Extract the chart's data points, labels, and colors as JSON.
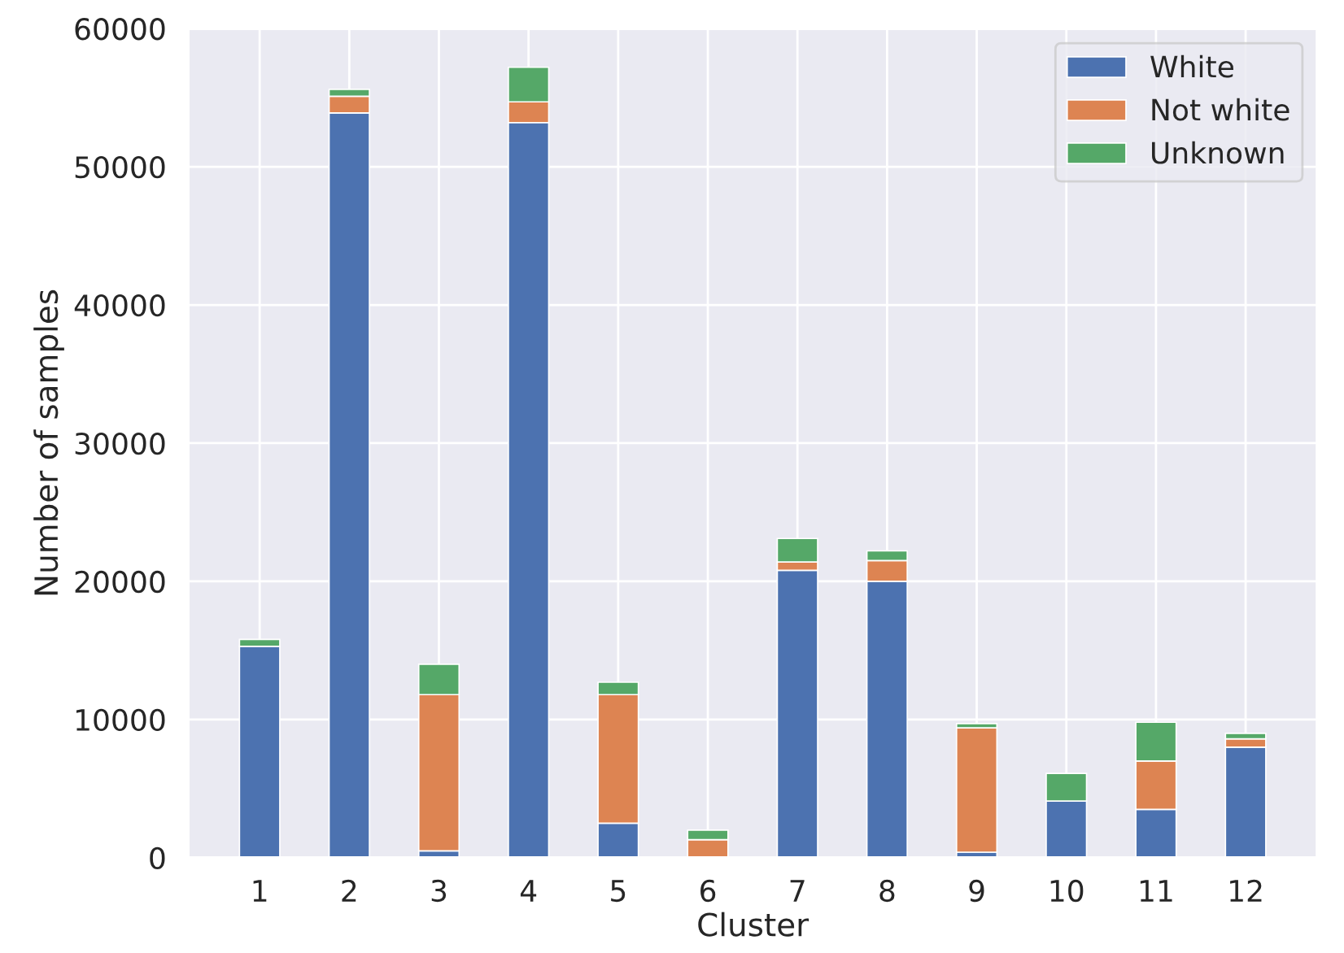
{
  "chart_data": {
    "type": "bar",
    "stacked": true,
    "xlabel": "Cluster",
    "ylabel": "Number of samples",
    "categories": [
      "1",
      "2",
      "3",
      "4",
      "5",
      "6",
      "7",
      "8",
      "9",
      "10",
      "11",
      "12"
    ],
    "series": [
      {
        "name": "White",
        "color": "#4c72b0",
        "values": [
          15300,
          53900,
          500,
          53200,
          2500,
          null,
          20800,
          20000,
          400,
          4100,
          3500,
          8000
        ]
      },
      {
        "name": "Not white",
        "color": "#dd8452",
        "values": [
          null,
          1200,
          11300,
          1500,
          9300,
          1300,
          600,
          1500,
          9000,
          null,
          3500,
          600
        ]
      },
      {
        "name": "Unknown",
        "color": "#55a868",
        "values": [
          500,
          500,
          2200,
          2500,
          900,
          700,
          1700,
          700,
          300,
          2000,
          2800,
          400
        ]
      }
    ],
    "ylim": [
      0,
      60000
    ],
    "yticks": [
      0,
      10000,
      20000,
      30000,
      40000,
      50000,
      60000
    ],
    "grid": true,
    "legend": "top right"
  }
}
